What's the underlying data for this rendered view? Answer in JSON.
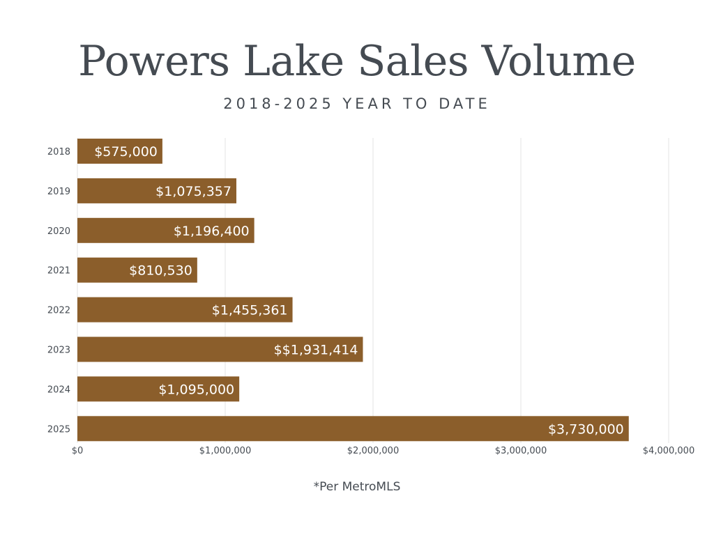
{
  "chart_data": {
    "type": "bar",
    "orientation": "horizontal",
    "title": "Powers Lake Sales Volume",
    "subtitle": "2018-2025 YEAR TO DATE",
    "categories": [
      "2018",
      "2019",
      "2020",
      "2021",
      "2022",
      "2023",
      "2024",
      "2025"
    ],
    "values": [
      575000,
      1075357,
      1196400,
      810530,
      1455361,
      1931414,
      1095000,
      3730000
    ],
    "data_labels": [
      "$575,000",
      "$1,075,357",
      "$1,196,400",
      "$810,530",
      "$1,455,361",
      "$$1,931,414",
      "$1,095,000",
      "$3,730,000"
    ],
    "xlim": [
      0,
      4000000
    ],
    "x_ticks": [
      0,
      1000000,
      2000000,
      3000000,
      4000000
    ],
    "x_tick_labels": [
      "$0",
      "$1,000,000",
      "$2,000,000",
      "$3,000,000",
      "$4,000,000"
    ],
    "grid": true,
    "bar_color": "#8b5e2b",
    "footnote": "*Per MetroMLS"
  },
  "colors": {
    "text": "#454b52",
    "grid": "#e3e3e3",
    "bar": "#8b5e2b",
    "bar_label": "#ffffff"
  }
}
